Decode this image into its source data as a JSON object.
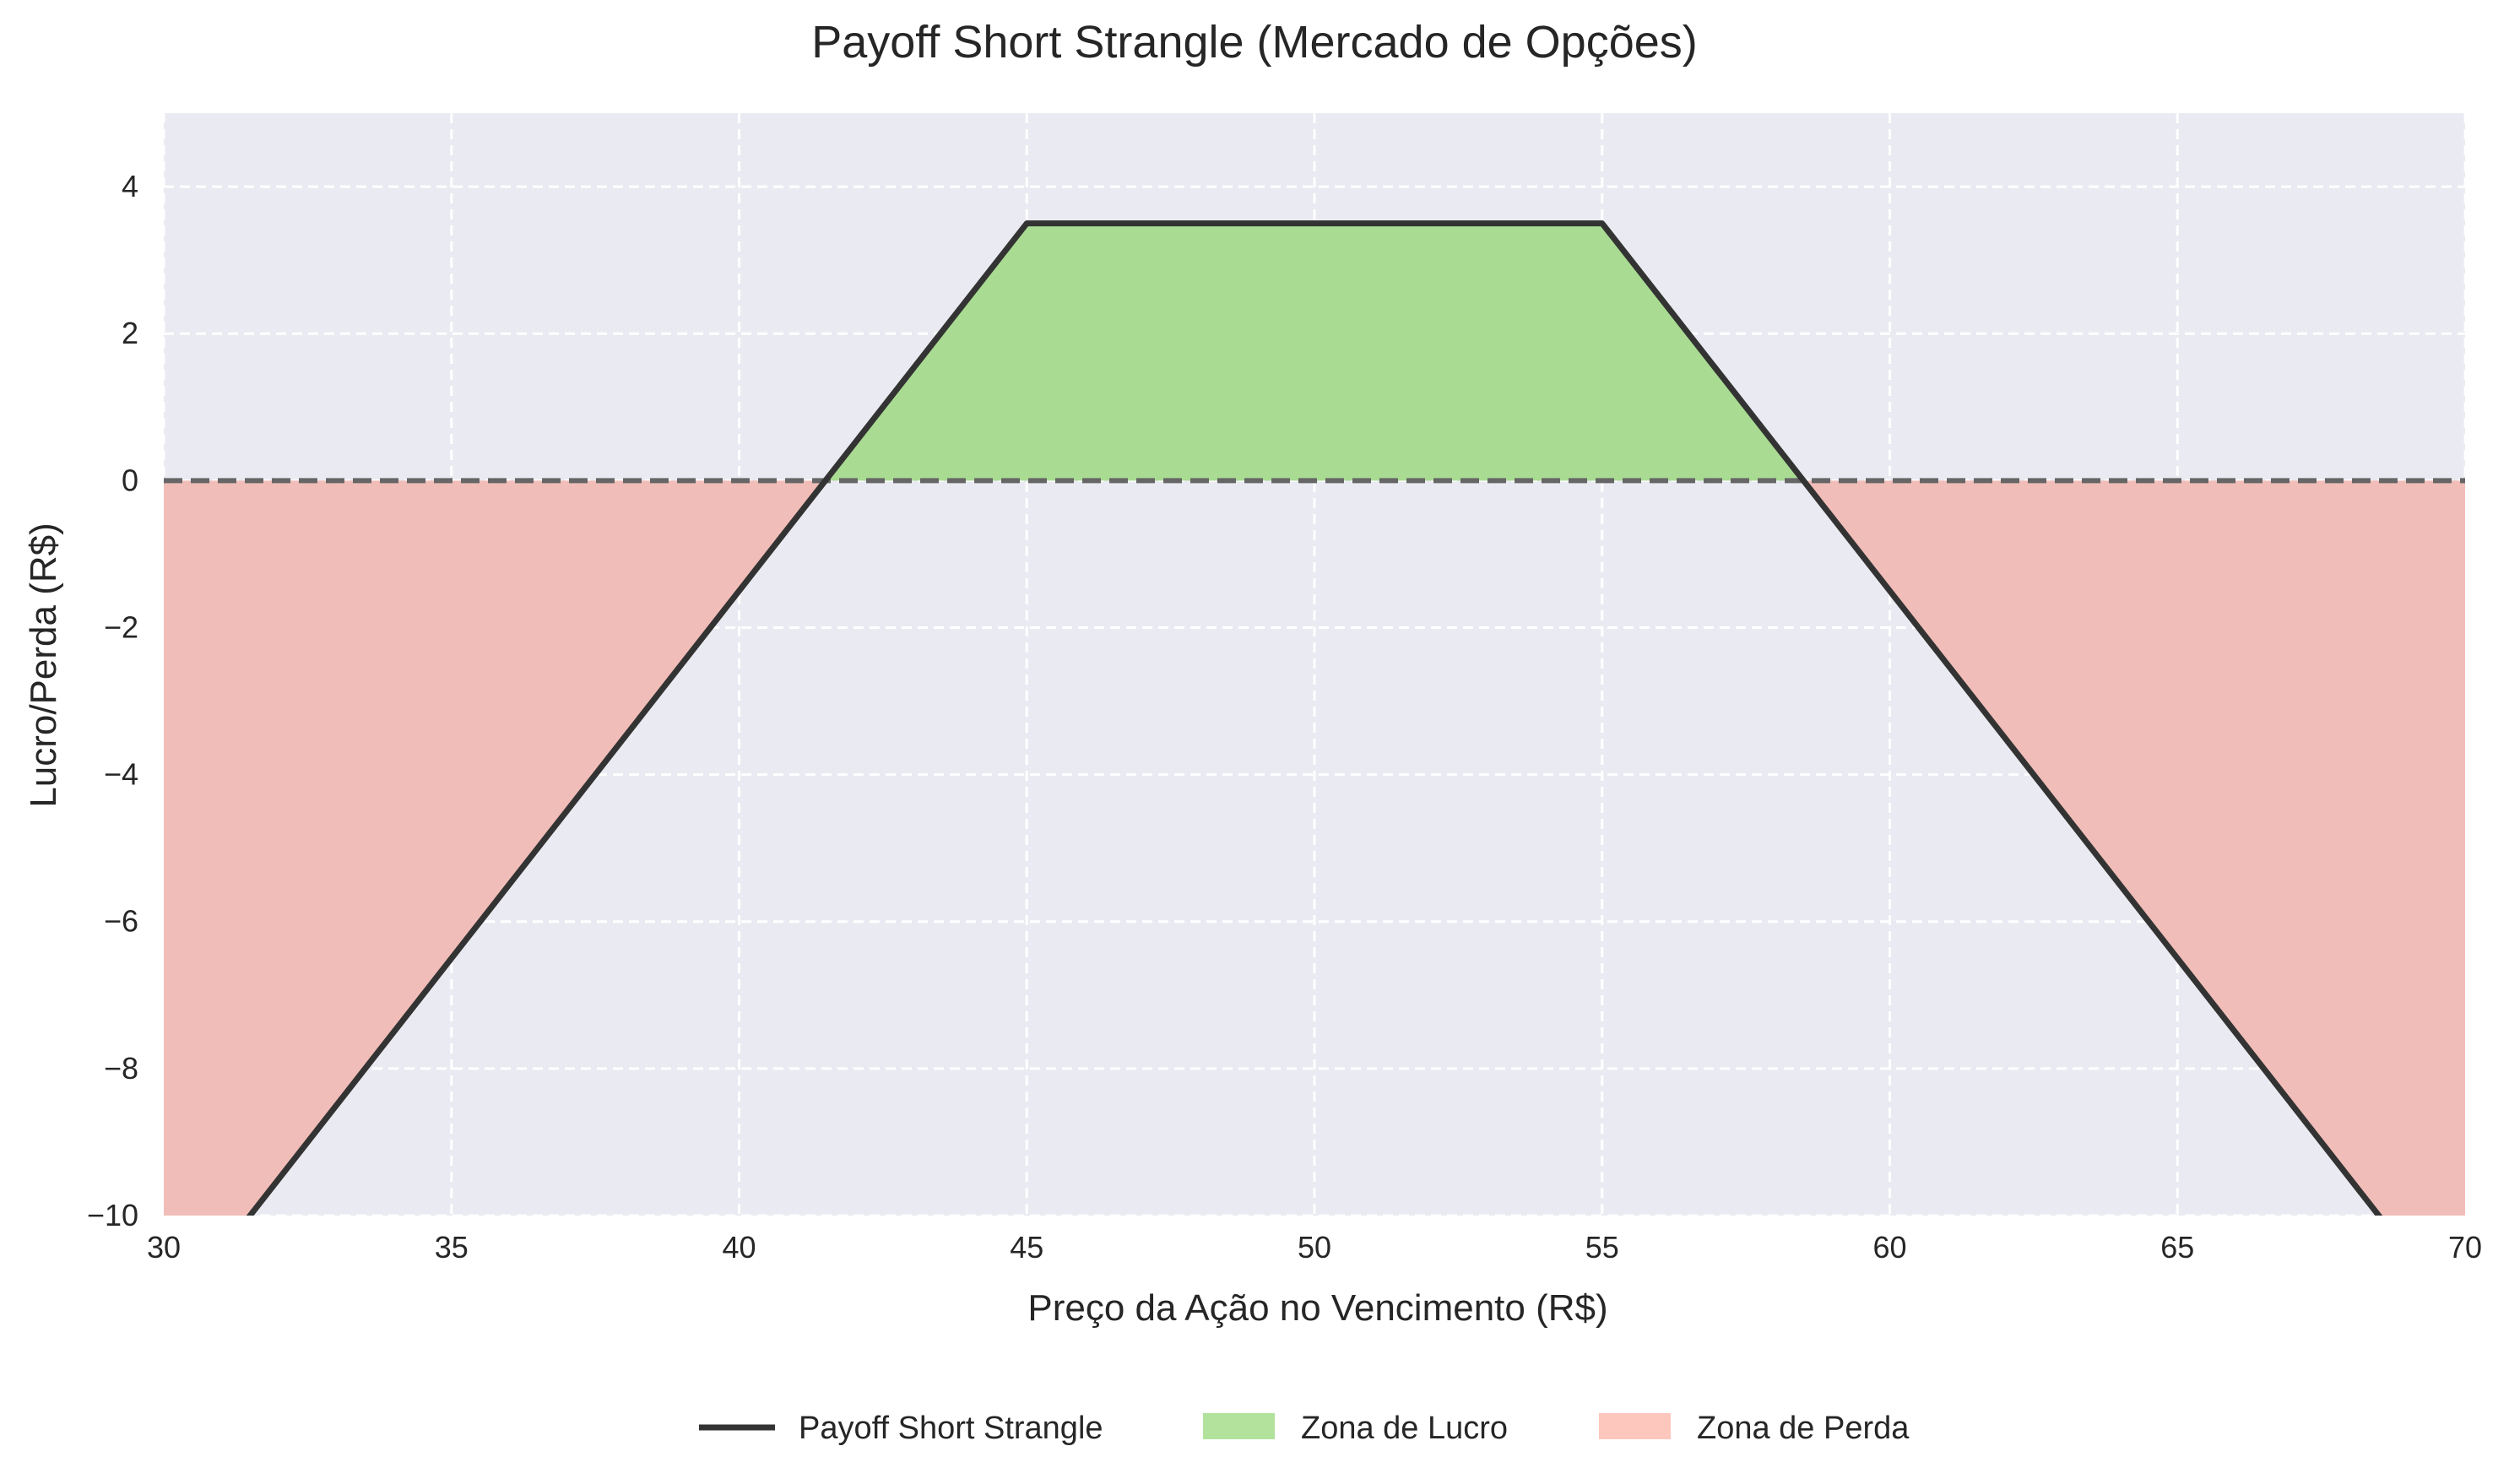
{
  "chart_data": {
    "type": "line",
    "title": "Payoff Short Strangle (Mercado de Opções)",
    "xlabel": "Preço da Ação no Vencimento (R$)",
    "ylabel": "Lucro/Perda (R$)",
    "xlim": [
      30,
      70
    ],
    "ylim": [
      -10,
      5
    ],
    "xticks": [
      30,
      35,
      40,
      45,
      50,
      55,
      60,
      65,
      70
    ],
    "yticks": [
      -10,
      -8,
      -6,
      -4,
      -2,
      0,
      2,
      4
    ],
    "ytick_labels": [
      "−10",
      "−8",
      "−6",
      "−4",
      "−2",
      "0",
      "2",
      "4"
    ],
    "grid": true,
    "legend_position": "bottom-center",
    "series": [
      {
        "name": "Payoff Short Strangle",
        "x": [
          30,
          45,
          55,
          70
        ],
        "y": [
          -11.5,
          3.5,
          3.5,
          -11.5
        ],
        "color": "#333333"
      }
    ],
    "reference_line": {
      "y": 0,
      "style": "dashed",
      "color": "#666666"
    },
    "fills": [
      {
        "name": "Zona de Lucro",
        "color": "#a9dc92",
        "condition": "y > 0"
      },
      {
        "name": "Zona de Perda",
        "color": "#f1bdb8",
        "condition": "y < 0"
      }
    ],
    "legend": [
      {
        "label": "Payoff Short Strangle",
        "kind": "line",
        "color": "#333333"
      },
      {
        "label": "Zona de Lucro",
        "kind": "patch",
        "color": "#b2e29c"
      },
      {
        "label": "Zona de Perda",
        "kind": "patch",
        "color": "#fdc7bd"
      }
    ],
    "colors": {
      "plot_background": "#eaeaf2",
      "grid": "#ffffff",
      "text": "#262626"
    }
  }
}
